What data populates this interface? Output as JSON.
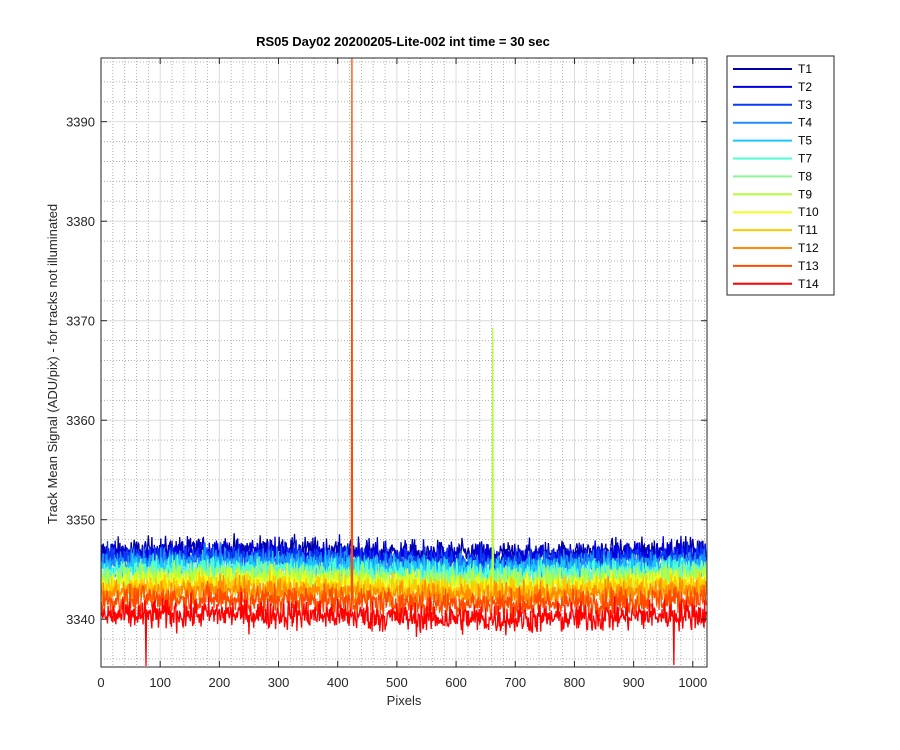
{
  "chart_data": {
    "type": "line",
    "title": "RS05 Day02 20200205-Lite-002 int time = 30 sec",
    "xlabel": "Pixels",
    "ylabel": "Track Mean Signal (ADU/pix) - for tracks not illuminated",
    "xlim": [
      0,
      1024
    ],
    "ylim": [
      3335.2,
      3396.4
    ],
    "xticks": [
      0,
      100,
      200,
      300,
      400,
      500,
      600,
      700,
      800,
      900,
      1000
    ],
    "yticks": [
      3340,
      3350,
      3360,
      3370,
      3380,
      3390
    ],
    "grid": "on",
    "minor_grid": "on",
    "legend_position": "outside-top-right",
    "series": [
      {
        "name": "T1",
        "color": "#0000aa",
        "mean": 3346.8,
        "noise": 1.1
      },
      {
        "name": "T2",
        "color": "#0000e6",
        "mean": 3346.4,
        "noise": 1.1
      },
      {
        "name": "T3",
        "color": "#0a3cf5",
        "mean": 3346.0,
        "noise": 1.1
      },
      {
        "name": "T4",
        "color": "#1e8cff",
        "mean": 3345.6,
        "noise": 1.1
      },
      {
        "name": "T5",
        "color": "#1ec8ff",
        "mean": 3345.1,
        "noise": 1.1
      },
      {
        "name": "T7",
        "color": "#50ffd2",
        "mean": 3344.7,
        "noise": 1.1
      },
      {
        "name": "T8",
        "color": "#8cf596",
        "mean": 3344.3,
        "noise": 1.1
      },
      {
        "name": "T9",
        "color": "#b4ff3c",
        "mean": 3343.9,
        "noise": 1.1,
        "spikes": [
          {
            "x": 662,
            "y": 3369.3
          }
        ]
      },
      {
        "name": "T10",
        "color": "#f0ff1e",
        "mean": 3343.5,
        "noise": 1.1
      },
      {
        "name": "T11",
        "color": "#ffc800",
        "mean": 3343.1,
        "noise": 1.1
      },
      {
        "name": "T12",
        "color": "#ff8c00",
        "mean": 3342.6,
        "noise": 1.1
      },
      {
        "name": "T13",
        "color": "#ff4b00",
        "mean": 3341.8,
        "noise": 1.2,
        "spikes": [
          {
            "x": 424,
            "y": 3396.4
          }
        ]
      },
      {
        "name": "T14",
        "color": "#ff0000",
        "mean": 3340.3,
        "noise": 1.3,
        "spikes": [
          {
            "x": 76,
            "y": 3335.3
          },
          {
            "x": 968,
            "y": 3335.4
          }
        ]
      }
    ]
  }
}
